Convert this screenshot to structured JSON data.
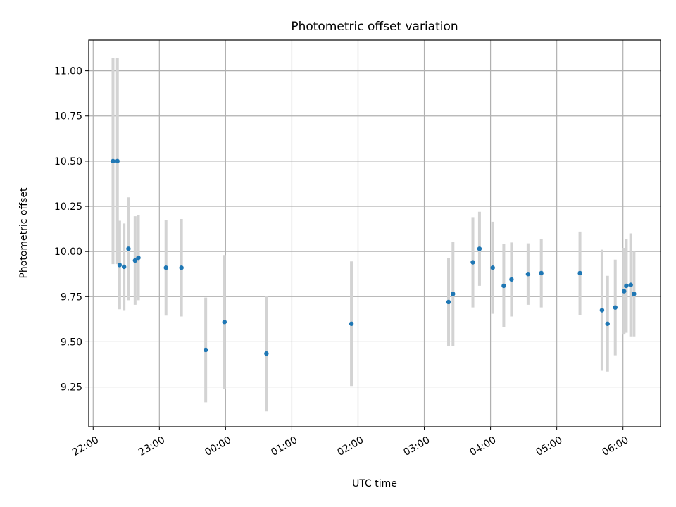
{
  "chart_data": {
    "type": "scatter",
    "title": "Photometric offset variation",
    "xlabel": "UTC time",
    "ylabel": "Photometric offset",
    "x_tick_labels": [
      "22:00",
      "23:00",
      "00:00",
      "01:00",
      "02:00",
      "03:00",
      "04:00",
      "05:00",
      "06:00"
    ],
    "y_tick_labels": [
      "9.25",
      "9.50",
      "9.75",
      "10.00",
      "10.25",
      "10.50",
      "10.75",
      "11.00"
    ],
    "xlim": [
      "21:56",
      "06:34"
    ],
    "ylim": [
      9.03,
      11.17
    ],
    "grid": true,
    "series": [
      {
        "marker_color": "#1f77b4",
        "errorbar_color": "#d3d3d3",
        "points": [
          {
            "x": "22:18",
            "y": 10.5,
            "err": 0.57
          },
          {
            "x": "22:22",
            "y": 10.5,
            "err": 0.57
          },
          {
            "x": "22:24",
            "y": 9.925,
            "err": 0.245
          },
          {
            "x": "22:28",
            "y": 9.915,
            "err": 0.24
          },
          {
            "x": "22:32",
            "y": 10.015,
            "err": 0.285
          },
          {
            "x": "22:38",
            "y": 9.95,
            "err": 0.245
          },
          {
            "x": "22:41",
            "y": 9.965,
            "err": 0.235
          },
          {
            "x": "23:06",
            "y": 9.91,
            "err": 0.265
          },
          {
            "x": "23:20",
            "y": 9.91,
            "err": 0.27
          },
          {
            "x": "23:42",
            "y": 9.455,
            "err": 0.29
          },
          {
            "x": "23:59",
            "y": 9.61,
            "err": 0.37
          },
          {
            "x": "00:37",
            "y": 9.435,
            "err": 0.32
          },
          {
            "x": "01:54",
            "y": 9.6,
            "err": 0.345
          },
          {
            "x": "03:22",
            "y": 9.72,
            "err": 0.245
          },
          {
            "x": "03:26",
            "y": 9.765,
            "err": 0.29
          },
          {
            "x": "03:44",
            "y": 9.94,
            "err": 0.25
          },
          {
            "x": "03:50",
            "y": 10.015,
            "err": 0.205
          },
          {
            "x": "04:02",
            "y": 9.91,
            "err": 0.255
          },
          {
            "x": "04:12",
            "y": 9.81,
            "err": 0.23
          },
          {
            "x": "04:19",
            "y": 9.845,
            "err": 0.205
          },
          {
            "x": "04:34",
            "y": 9.875,
            "err": 0.17
          },
          {
            "x": "04:46",
            "y": 9.88,
            "err": 0.19
          },
          {
            "x": "05:21",
            "y": 9.88,
            "err": 0.23
          },
          {
            "x": "05:41",
            "y": 9.675,
            "err": 0.335
          },
          {
            "x": "05:46",
            "y": 9.6,
            "err": 0.265
          },
          {
            "x": "05:53",
            "y": 9.69,
            "err": 0.265
          },
          {
            "x": "06:01",
            "y": 9.78,
            "err": 0.24
          },
          {
            "x": "06:03",
            "y": 9.81,
            "err": 0.26
          },
          {
            "x": "06:07",
            "y": 9.815,
            "err": 0.285
          },
          {
            "x": "06:10",
            "y": 9.765,
            "err": 0.235
          }
        ]
      }
    ]
  }
}
